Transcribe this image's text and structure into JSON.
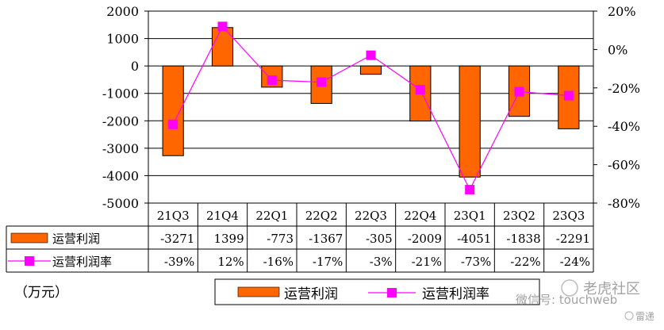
{
  "chart_data": {
    "type": "bar+line",
    "categories": [
      "21Q3",
      "21Q4",
      "22Q1",
      "22Q2",
      "22Q3",
      "22Q4",
      "23Q1",
      "23Q2",
      "23Q3"
    ],
    "series": [
      {
        "name": "运营利润",
        "type": "bar",
        "axis": "left",
        "values": [
          -3271,
          1399,
          -773,
          -1367,
          -305,
          -2009,
          -4051,
          -1838,
          -2291
        ],
        "labels": [
          "-3271",
          "1399",
          "-773",
          "-1367",
          "-305",
          "-2009",
          "-4051",
          "-1838",
          "-2291"
        ],
        "color": "#FF6600"
      },
      {
        "name": "运营利润率",
        "type": "line",
        "axis": "right",
        "values": [
          -39,
          12,
          -16,
          -17,
          -3,
          -21,
          -73,
          -22,
          -24
        ],
        "labels": [
          "-39%",
          "12%",
          "-16%",
          "-17%",
          "-3%",
          "-21%",
          "-73%",
          "-22%",
          "-24%"
        ],
        "color": "#FF00FF"
      }
    ],
    "y_left": {
      "ylim": [
        -5000,
        2000
      ],
      "ticks": [
        "2000",
        "1000",
        "0",
        "-1000",
        "-2000",
        "-3000",
        "-4000",
        "-5000"
      ]
    },
    "y_right": {
      "ylim": [
        -80,
        20
      ],
      "ticks": [
        "20%",
        "0%",
        "-20%",
        "-40%",
        "-60%",
        "-80%"
      ]
    },
    "grid": true,
    "data_table": true,
    "legend": "bottom",
    "unit_label": "（万元）"
  },
  "watermark": {
    "line1": "老虎社区",
    "line2": "微信号: touchweb",
    "line3": "雷递"
  }
}
